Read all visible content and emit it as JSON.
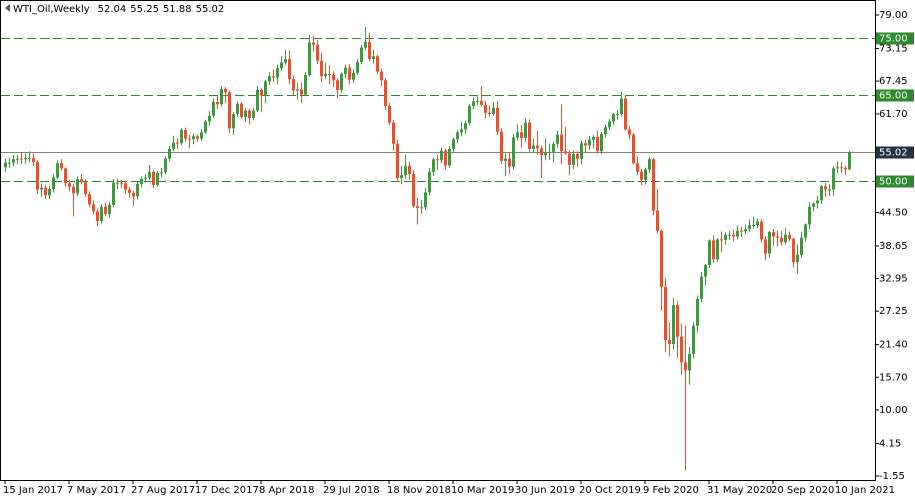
{
  "chart_data": {
    "type": "candlestick",
    "symbol": "WTI_Oil,Weekly",
    "up_color": "#3c9a3c",
    "down_color": "#ee4e2c",
    "level_color": "#2f8a2f",
    "price_line_color": "#7a8a7a",
    "ylim": [
      -1.55,
      79
    ],
    "yticks": [
      {
        "value": 79,
        "label": "79.00"
      },
      {
        "value": 73.15,
        "label": "73.15"
      },
      {
        "value": 67.45,
        "label": "67.45"
      },
      {
        "value": 61.7,
        "label": "61.70"
      },
      {
        "value": 44.5,
        "label": "44.50"
      },
      {
        "value": 38.65,
        "label": "38.65"
      },
      {
        "value": 32.95,
        "label": "32.95"
      },
      {
        "value": 27.25,
        "label": "27.25"
      },
      {
        "value": 21.4,
        "label": "21.40"
      },
      {
        "value": 15.7,
        "label": "15.70"
      },
      {
        "value": 10,
        "label": "10.00"
      },
      {
        "value": 4.15,
        "label": "4.15"
      },
      {
        "value": -1.55,
        "label": "-1.55"
      }
    ],
    "levels": [
      {
        "value": 75,
        "label": "75.00"
      },
      {
        "value": 65,
        "label": "65.00"
      },
      {
        "value": 50,
        "label": "50.00"
      }
    ],
    "price_line": {
      "value": 55.02,
      "label": "55.02"
    },
    "categories": [
      "15 Jan 2017",
      null,
      null,
      null,
      null,
      null,
      null,
      null,
      null,
      null,
      null,
      null,
      null,
      null,
      null,
      null,
      "7 May 2017",
      null,
      null,
      null,
      null,
      null,
      null,
      null,
      null,
      null,
      null,
      null,
      null,
      null,
      null,
      null,
      "27 Aug 2017",
      null,
      null,
      null,
      null,
      null,
      null,
      null,
      null,
      null,
      null,
      null,
      null,
      null,
      null,
      null,
      "17 Dec 2017",
      null,
      null,
      null,
      null,
      null,
      null,
      null,
      null,
      null,
      null,
      null,
      null,
      null,
      null,
      null,
      "8 Apr 2018",
      null,
      null,
      null,
      null,
      null,
      null,
      null,
      null,
      null,
      null,
      null,
      null,
      null,
      null,
      null,
      "29 Jul 2018",
      null,
      null,
      null,
      null,
      null,
      null,
      null,
      null,
      null,
      null,
      null,
      null,
      null,
      null,
      null,
      "18 Nov 2018",
      null,
      null,
      null,
      null,
      null,
      null,
      null,
      null,
      null,
      null,
      null,
      null,
      null,
      null,
      null,
      "10 Mar 2019",
      null,
      null,
      null,
      null,
      null,
      null,
      null,
      null,
      null,
      null,
      null,
      null,
      null,
      null,
      null,
      "30 Jun 2019",
      null,
      null,
      null,
      null,
      null,
      null,
      null,
      null,
      null,
      null,
      null,
      null,
      null,
      null,
      null,
      "20 Oct 2019",
      null,
      null,
      null,
      null,
      null,
      null,
      null,
      null,
      null,
      null,
      null,
      null,
      null,
      null,
      null,
      "9 Feb 2020",
      null,
      null,
      null,
      null,
      null,
      null,
      null,
      null,
      null,
      null,
      null,
      null,
      null,
      null,
      null,
      "31 May 2020",
      null,
      null,
      null,
      null,
      null,
      null,
      null,
      null,
      null,
      null,
      null,
      null,
      null,
      null,
      null,
      "20 Sep 2020",
      null,
      null,
      null,
      null,
      null,
      null,
      null,
      null,
      null,
      null,
      null,
      null,
      null,
      null,
      null,
      "10 Jan 2021",
      null,
      null,
      null
    ],
    "ohlc": [
      [
        52.4,
        53.9,
        51.6,
        53.2
      ],
      [
        53.2,
        54.0,
        52.3,
        53.2
      ],
      [
        53.2,
        54.5,
        52.6,
        53.8
      ],
      [
        53.8,
        54.6,
        52.9,
        53.9
      ],
      [
        53.9,
        54.9,
        53.0,
        53.8
      ],
      [
        53.8,
        54.8,
        53.0,
        54.0
      ],
      [
        54.0,
        55.2,
        53.2,
        54.0
      ],
      [
        54.0,
        54.8,
        52.6,
        53.3
      ],
      [
        53.3,
        53.6,
        47.8,
        48.5
      ],
      [
        48.5,
        49.6,
        47.2,
        48.8
      ],
      [
        48.8,
        49.3,
        46.9,
        47.5
      ],
      [
        47.5,
        49.2,
        46.8,
        48.6
      ],
      [
        48.6,
        51.2,
        48.0,
        50.6
      ],
      [
        50.6,
        53.6,
        50.3,
        53.1
      ],
      [
        53.1,
        53.8,
        51.8,
        52.2
      ],
      [
        52.2,
        52.4,
        49.0,
        49.6
      ],
      [
        49.6,
        50.2,
        48.2,
        49.0
      ],
      [
        49.0,
        49.4,
        43.8,
        47.8
      ],
      [
        47.8,
        50.8,
        47.4,
        50.3
      ],
      [
        50.3,
        51.2,
        49.4,
        49.8
      ],
      [
        49.8,
        50.3,
        47.2,
        47.7
      ],
      [
        47.7,
        48.2,
        45.4,
        45.9
      ],
      [
        45.9,
        46.6,
        44.2,
        44.7
      ],
      [
        44.7,
        45.2,
        42.1,
        43.0
      ],
      [
        43.0,
        45.9,
        42.6,
        45.5
      ],
      [
        45.5,
        46.2,
        43.8,
        44.2
      ],
      [
        44.2,
        46.3,
        43.6,
        45.8
      ],
      [
        45.8,
        50.3,
        45.4,
        49.7
      ],
      [
        49.7,
        50.4,
        48.6,
        49.7
      ],
      [
        49.7,
        50.2,
        48.8,
        49.6
      ],
      [
        49.6,
        50.0,
        47.8,
        48.5
      ],
      [
        48.5,
        49.0,
        47.1,
        47.9
      ],
      [
        47.9,
        48.3,
        45.6,
        47.3
      ],
      [
        47.3,
        49.9,
        46.8,
        49.5
      ],
      [
        49.5,
        50.8,
        48.9,
        50.4
      ],
      [
        50.4,
        51.2,
        49.7,
        50.6
      ],
      [
        50.6,
        52.8,
        50.2,
        51.6
      ],
      [
        51.6,
        51.9,
        48.8,
        49.3
      ],
      [
        49.3,
        51.8,
        49.0,
        51.4
      ],
      [
        51.4,
        52.3,
        50.7,
        51.5
      ],
      [
        51.5,
        54.3,
        51.2,
        53.9
      ],
      [
        53.9,
        56.1,
        53.5,
        55.6
      ],
      [
        55.6,
        57.9,
        55.2,
        56.7
      ],
      [
        56.7,
        57.5,
        55.6,
        56.6
      ],
      [
        56.6,
        59.2,
        56.2,
        58.9
      ],
      [
        58.9,
        59.3,
        56.9,
        57.4
      ],
      [
        57.4,
        58.1,
        55.8,
        57.3
      ],
      [
        57.3,
        58.3,
        56.4,
        57.8
      ],
      [
        57.8,
        58.1,
        56.9,
        57.4
      ],
      [
        57.4,
        59.1,
        57.0,
        58.5
      ],
      [
        58.5,
        60.7,
        58.2,
        60.4
      ],
      [
        60.4,
        62.2,
        59.7,
        61.4
      ],
      [
        61.4,
        64.4,
        61.0,
        63.8
      ],
      [
        63.8,
        64.9,
        62.6,
        63.4
      ],
      [
        63.4,
        66.6,
        63.0,
        66.1
      ],
      [
        66.1,
        66.4,
        63.6,
        65.5
      ],
      [
        65.5,
        65.8,
        58.4,
        59.2
      ],
      [
        59.2,
        62.0,
        58.1,
        61.7
      ],
      [
        61.7,
        63.9,
        61.2,
        63.5
      ],
      [
        63.5,
        63.8,
        60.9,
        61.2
      ],
      [
        61.2,
        62.7,
        60.3,
        62.3
      ],
      [
        62.3,
        62.6,
        59.9,
        61.0
      ],
      [
        61.0,
        62.8,
        60.6,
        62.3
      ],
      [
        62.3,
        66.6,
        62.0,
        65.9
      ],
      [
        65.9,
        66.2,
        62.1,
        64.9
      ],
      [
        64.9,
        67.7,
        63.6,
        67.4
      ],
      [
        67.4,
        69.0,
        66.8,
        68.3
      ],
      [
        68.3,
        69.5,
        67.3,
        68.1
      ],
      [
        68.1,
        70.3,
        66.9,
        69.7
      ],
      [
        69.7,
        71.8,
        69.3,
        70.7
      ],
      [
        70.7,
        72.9,
        70.3,
        71.3
      ],
      [
        71.3,
        72.8,
        66.9,
        67.8
      ],
      [
        67.8,
        68.4,
        64.8,
        65.8
      ],
      [
        65.8,
        67.1,
        64.2,
        66.0
      ],
      [
        66.0,
        67.2,
        63.6,
        65.1
      ],
      [
        65.1,
        69.0,
        64.8,
        68.5
      ],
      [
        68.5,
        75.5,
        68.2,
        74.2
      ],
      [
        74.2,
        75.3,
        72.6,
        73.8
      ],
      [
        73.8,
        74.6,
        70.4,
        71.0
      ],
      [
        71.0,
        72.4,
        67.3,
        68.3
      ],
      [
        68.3,
        70.7,
        67.9,
        68.7
      ],
      [
        68.7,
        70.2,
        66.9,
        68.5
      ],
      [
        68.5,
        69.2,
        66.4,
        67.6
      ],
      [
        67.6,
        67.9,
        64.4,
        65.9
      ],
      [
        65.9,
        69.0,
        65.4,
        68.7
      ],
      [
        68.7,
        70.3,
        67.9,
        69.8
      ],
      [
        69.8,
        70.4,
        66.9,
        67.7
      ],
      [
        67.7,
        69.5,
        67.1,
        68.9
      ],
      [
        68.9,
        71.3,
        68.5,
        70.8
      ],
      [
        70.8,
        73.8,
        70.4,
        73.3
      ],
      [
        73.3,
        76.9,
        72.8,
        74.3
      ],
      [
        74.3,
        75.9,
        70.9,
        71.3
      ],
      [
        71.3,
        72.9,
        70.5,
        71.8
      ],
      [
        71.8,
        72.0,
        68.6,
        69.1
      ],
      [
        69.1,
        69.6,
        66.6,
        67.6
      ],
      [
        67.6,
        68.0,
        62.4,
        63.1
      ],
      [
        63.1,
        63.6,
        59.8,
        60.2
      ],
      [
        60.2,
        60.6,
        55.3,
        56.5
      ],
      [
        56.5,
        57.2,
        49.8,
        50.5
      ],
      [
        50.5,
        52.6,
        49.4,
        51.0
      ],
      [
        51.0,
        54.6,
        50.3,
        52.6
      ],
      [
        52.6,
        53.4,
        50.2,
        51.2
      ],
      [
        51.2,
        51.9,
        45.3,
        45.6
      ],
      [
        45.6,
        47.1,
        42.4,
        45.3
      ],
      [
        45.3,
        46.7,
        44.3,
        45.4
      ],
      [
        45.4,
        48.8,
        44.9,
        48.0
      ],
      [
        48.0,
        52.3,
        47.6,
        51.6
      ],
      [
        51.6,
        54.1,
        50.9,
        53.8
      ],
      [
        53.8,
        54.5,
        51.9,
        53.7
      ],
      [
        53.7,
        55.8,
        53.1,
        55.3
      ],
      [
        55.3,
        55.6,
        52.0,
        52.7
      ],
      [
        52.7,
        56.1,
        52.3,
        55.6
      ],
      [
        55.6,
        57.6,
        54.9,
        57.3
      ],
      [
        57.3,
        58.9,
        56.7,
        58.5
      ],
      [
        58.5,
        60.3,
        57.8,
        59.0
      ],
      [
        59.0,
        60.5,
        58.2,
        60.1
      ],
      [
        60.1,
        63.5,
        59.7,
        63.1
      ],
      [
        63.1,
        64.6,
        62.6,
        63.9
      ],
      [
        63.9,
        64.8,
        63.2,
        64.0
      ],
      [
        64.0,
        66.6,
        63.0,
        63.3
      ],
      [
        63.3,
        64.0,
        61.0,
        61.9
      ],
      [
        61.9,
        63.2,
        61.2,
        61.7
      ],
      [
        61.7,
        63.8,
        61.3,
        62.8
      ],
      [
        62.8,
        64.0,
        58.0,
        58.6
      ],
      [
        58.6,
        59.2,
        53.0,
        53.5
      ],
      [
        53.5,
        54.8,
        50.9,
        53.9
      ],
      [
        53.9,
        55.0,
        51.3,
        52.5
      ],
      [
        52.5,
        58.2,
        52.0,
        57.6
      ],
      [
        57.6,
        59.9,
        57.1,
        58.5
      ],
      [
        58.5,
        59.8,
        55.8,
        57.5
      ],
      [
        57.5,
        60.9,
        56.9,
        60.2
      ],
      [
        60.2,
        60.8,
        55.1,
        55.6
      ],
      [
        55.6,
        57.4,
        55.0,
        56.2
      ],
      [
        56.2,
        58.8,
        54.6,
        55.7
      ],
      [
        55.7,
        56.2,
        50.5,
        54.5
      ],
      [
        54.5,
        57.4,
        53.6,
        54.9
      ],
      [
        54.9,
        56.5,
        53.7,
        55.1
      ],
      [
        55.1,
        56.9,
        53.2,
        56.5
      ],
      [
        56.5,
        58.8,
        55.8,
        58.1
      ],
      [
        58.1,
        63.4,
        52.9,
        55.2
      ],
      [
        55.2,
        59.4,
        54.6,
        54.8
      ],
      [
        54.8,
        55.4,
        51.0,
        52.8
      ],
      [
        52.8,
        55.4,
        52.0,
        54.7
      ],
      [
        54.7,
        55.2,
        52.5,
        53.9
      ],
      [
        53.9,
        57.0,
        52.9,
        56.6
      ],
      [
        56.6,
        57.2,
        55.0,
        56.2
      ],
      [
        56.2,
        57.9,
        55.5,
        57.2
      ],
      [
        57.2,
        58.0,
        55.7,
        57.7
      ],
      [
        57.7,
        58.8,
        54.8,
        55.2
      ],
      [
        55.2,
        58.6,
        54.7,
        58.2
      ],
      [
        58.2,
        59.8,
        57.6,
        59.4
      ],
      [
        59.4,
        60.8,
        58.9,
        60.4
      ],
      [
        60.4,
        61.9,
        59.8,
        61.7
      ],
      [
        61.7,
        62.3,
        60.7,
        61.7
      ],
      [
        61.7,
        65.6,
        61.3,
        64.4
      ],
      [
        64.4,
        65.0,
        58.8,
        59.0
      ],
      [
        59.0,
        59.6,
        57.3,
        58.1
      ],
      [
        58.1,
        58.4,
        52.9,
        53.1
      ],
      [
        53.1,
        54.3,
        51.0,
        51.6
      ],
      [
        51.6,
        52.1,
        49.3,
        50.2
      ],
      [
        50.2,
        52.3,
        49.4,
        52.0
      ],
      [
        52.0,
        54.2,
        51.4,
        53.8
      ],
      [
        53.8,
        54.0,
        44.0,
        44.8
      ],
      [
        44.8,
        48.6,
        40.9,
        41.3
      ],
      [
        41.3,
        41.5,
        27.3,
        31.5
      ],
      [
        31.5,
        33.0,
        20.1,
        22.2
      ],
      [
        22.2,
        25.2,
        19.3,
        21.5
      ],
      [
        21.5,
        29.6,
        20.6,
        28.3
      ],
      [
        28.3,
        29.0,
        19.2,
        22.8
      ],
      [
        22.8,
        25.0,
        16.1,
        18.3
      ],
      [
        18.3,
        24.8,
        -0.6,
        16.9
      ],
      [
        16.9,
        21.0,
        14.4,
        19.8
      ],
      [
        19.8,
        25.3,
        19.0,
        24.7
      ],
      [
        24.7,
        30.0,
        23.5,
        29.4
      ],
      [
        29.4,
        34.1,
        28.8,
        33.3
      ],
      [
        33.3,
        35.5,
        31.8,
        35.3
      ],
      [
        35.3,
        39.8,
        34.8,
        39.6
      ],
      [
        39.6,
        40.5,
        35.7,
        36.3
      ],
      [
        36.3,
        40.0,
        35.9,
        39.8
      ],
      [
        39.8,
        41.2,
        37.5,
        39.7
      ],
      [
        39.7,
        41.0,
        38.9,
        40.6
      ],
      [
        40.6,
        41.3,
        39.7,
        40.6
      ],
      [
        40.6,
        41.5,
        39.5,
        40.3
      ],
      [
        40.3,
        42.2,
        39.8,
        41.3
      ],
      [
        41.3,
        42.0,
        40.2,
        41.2
      ],
      [
        41.2,
        42.4,
        40.7,
        41.6
      ],
      [
        41.6,
        43.3,
        41.1,
        42.3
      ],
      [
        42.3,
        43.8,
        41.6,
        42.3
      ],
      [
        42.3,
        43.4,
        41.7,
        42.9
      ],
      [
        42.9,
        43.3,
        39.2,
        39.8
      ],
      [
        39.8,
        40.3,
        36.2,
        37.3
      ],
      [
        37.3,
        41.3,
        36.6,
        41.1
      ],
      [
        41.1,
        41.6,
        38.7,
        40.3
      ],
      [
        40.3,
        41.3,
        38.5,
        40.1
      ],
      [
        40.1,
        41.2,
        38.7,
        39.3
      ],
      [
        39.3,
        41.8,
        38.9,
        40.6
      ],
      [
        40.6,
        41.2,
        39.5,
        39.9
      ],
      [
        39.9,
        40.1,
        34.9,
        35.8
      ],
      [
        35.8,
        38.9,
        33.8,
        37.1
      ],
      [
        37.1,
        41.1,
        36.6,
        40.1
      ],
      [
        40.1,
        42.6,
        39.4,
        42.4
      ],
      [
        42.4,
        46.3,
        41.6,
        45.5
      ],
      [
        45.5,
        46.2,
        44.7,
        46.1
      ],
      [
        46.1,
        47.4,
        45.2,
        46.6
      ],
      [
        46.6,
        49.3,
        46.0,
        49.1
      ],
      [
        49.1,
        49.6,
        47.2,
        48.5
      ],
      [
        48.5,
        49.4,
        47.4,
        48.5
      ],
      [
        48.5,
        52.5,
        47.4,
        52.2
      ],
      [
        52.2,
        53.4,
        51.4,
        52.4
      ],
      [
        52.4,
        53.3,
        51.4,
        52.3
      ],
      [
        52.3,
        52.6,
        51.0,
        52.0
      ],
      [
        52.04,
        55.25,
        51.88,
        55.02
      ]
    ]
  }
}
